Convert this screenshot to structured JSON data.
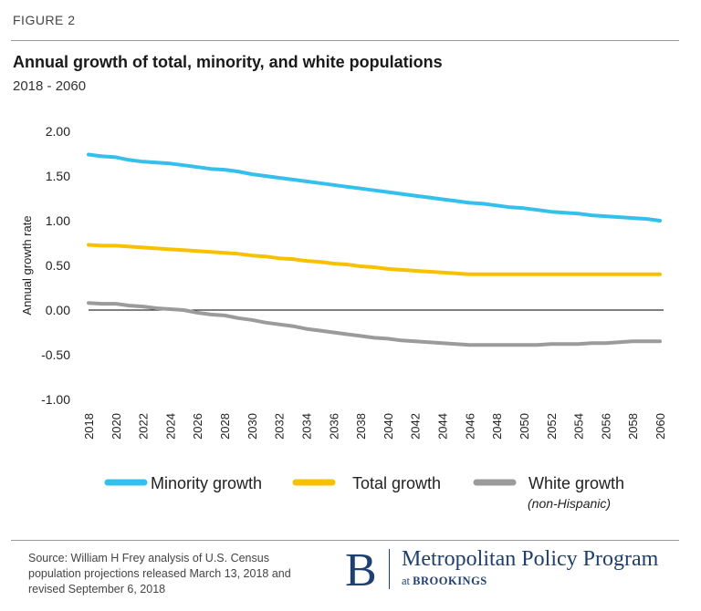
{
  "figure_label": "FIGURE 2",
  "source_note": "Source: William H Frey analysis of U.S. Census population projections released March 13, 2018 and revised September 6, 2018",
  "logo": {
    "letter": "B",
    "name": "Metropolitan Policy Program",
    "at": "at",
    "org": "BROOKINGS",
    "color": "#1f3f6e"
  },
  "chart_data": {
    "type": "line",
    "title": "Annual growth of total, minority, and white populations",
    "subtitle": "2018 - 2060",
    "xlabel": "",
    "ylabel": "Annual growth rate",
    "ylim": [
      -1.0,
      2.0
    ],
    "y_ticks": [
      "2.00",
      "1.50",
      "1.00",
      "0.50",
      "0.00",
      "-0.50",
      "-1.00"
    ],
    "y_tick_values": [
      2.0,
      1.5,
      1.0,
      0.5,
      0.0,
      -0.5,
      -1.0
    ],
    "x_ticks": [
      "2018",
      "2020",
      "2022",
      "2024",
      "2026",
      "2028",
      "2030",
      "2032",
      "2034",
      "2036",
      "2038",
      "2040",
      "2042",
      "2044",
      "2046",
      "2048",
      "2050",
      "2052",
      "2054",
      "2056",
      "2058",
      "2060"
    ],
    "xlim": [
      2018,
      2060
    ],
    "grid": false,
    "zero_line": true,
    "legend_position": "bottom",
    "legend_note": "(non-Hispanic)",
    "x": [
      2018,
      2019,
      2020,
      2021,
      2022,
      2023,
      2024,
      2025,
      2026,
      2027,
      2028,
      2029,
      2030,
      2031,
      2032,
      2033,
      2034,
      2035,
      2036,
      2037,
      2038,
      2039,
      2040,
      2041,
      2042,
      2043,
      2044,
      2045,
      2046,
      2047,
      2048,
      2049,
      2050,
      2051,
      2052,
      2053,
      2054,
      2055,
      2056,
      2057,
      2058,
      2059,
      2060
    ],
    "series": [
      {
        "name": "Minority growth",
        "color": "#35c0ec",
        "values": [
          1.74,
          1.72,
          1.71,
          1.68,
          1.66,
          1.65,
          1.64,
          1.62,
          1.6,
          1.58,
          1.57,
          1.55,
          1.52,
          1.5,
          1.48,
          1.46,
          1.44,
          1.42,
          1.4,
          1.38,
          1.36,
          1.34,
          1.32,
          1.3,
          1.28,
          1.26,
          1.24,
          1.22,
          1.2,
          1.19,
          1.17,
          1.15,
          1.14,
          1.12,
          1.1,
          1.09,
          1.08,
          1.06,
          1.05,
          1.04,
          1.03,
          1.02,
          1.0
        ]
      },
      {
        "name": "Total growth",
        "color": "#f8c100",
        "values": [
          0.73,
          0.72,
          0.72,
          0.71,
          0.7,
          0.69,
          0.68,
          0.67,
          0.66,
          0.65,
          0.64,
          0.63,
          0.61,
          0.6,
          0.58,
          0.57,
          0.55,
          0.54,
          0.52,
          0.51,
          0.49,
          0.48,
          0.46,
          0.45,
          0.44,
          0.43,
          0.42,
          0.41,
          0.4,
          0.4,
          0.4,
          0.4,
          0.4,
          0.4,
          0.4,
          0.4,
          0.4,
          0.4,
          0.4,
          0.4,
          0.4,
          0.4,
          0.4
        ]
      },
      {
        "name": "White growth",
        "color": "#9b9b9b",
        "values": [
          0.08,
          0.07,
          0.07,
          0.05,
          0.04,
          0.02,
          0.01,
          0.0,
          -0.03,
          -0.05,
          -0.06,
          -0.09,
          -0.11,
          -0.14,
          -0.16,
          -0.18,
          -0.21,
          -0.23,
          -0.25,
          -0.27,
          -0.29,
          -0.31,
          -0.32,
          -0.34,
          -0.35,
          -0.36,
          -0.37,
          -0.38,
          -0.39,
          -0.39,
          -0.39,
          -0.39,
          -0.39,
          -0.39,
          -0.38,
          -0.38,
          -0.38,
          -0.37,
          -0.37,
          -0.36,
          -0.35,
          -0.35,
          -0.35
        ]
      }
    ]
  }
}
